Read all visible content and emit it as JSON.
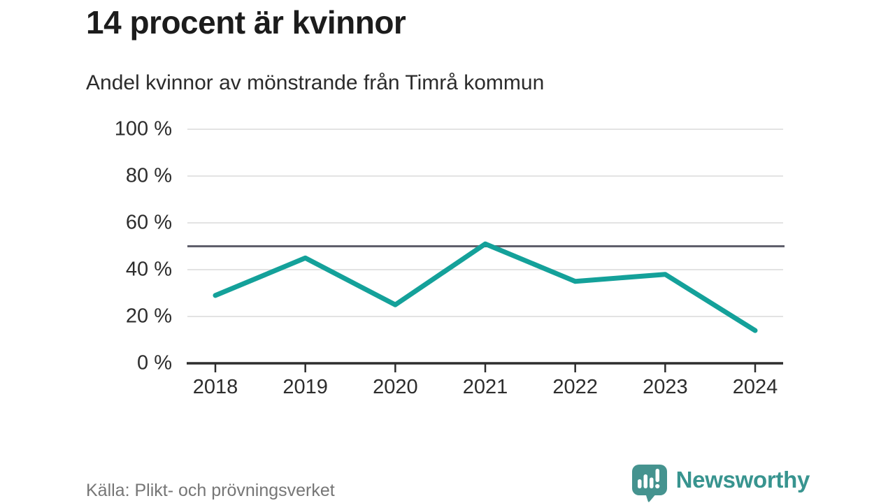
{
  "header": {
    "title": "14 procent är kvinnor",
    "subtitle": "Andel kvinnor av mönstrande från Timrå kommun"
  },
  "chart_data": {
    "type": "line",
    "title": "Andel kvinnor av mönstrande från Timrå kommun",
    "categories": [
      "2018",
      "2019",
      "2020",
      "2021",
      "2022",
      "2023",
      "2024"
    ],
    "series": [
      {
        "name": "Andel kvinnor",
        "values": [
          29,
          45,
          25,
          51,
          35,
          38,
          14
        ]
      }
    ],
    "xlabel": "",
    "ylabel": "",
    "ylim": [
      0,
      100
    ],
    "yticks": [
      0,
      20,
      40,
      60,
      80,
      100
    ],
    "ytick_suffix": " %",
    "reference_line": 50,
    "grid": true,
    "legend": "none",
    "colors": {
      "line": "#14a19a",
      "gridline": "#e3e3e3",
      "reference_line": "#5f5f6b",
      "axis": "#2d2d2d"
    }
  },
  "footer": {
    "source": "Källa: Plikt- och prövningsverket",
    "brand": "Newsworthy",
    "brand_color": "#38948f",
    "brand_icon": "speech-bubble-bar-chart-exclamation"
  }
}
